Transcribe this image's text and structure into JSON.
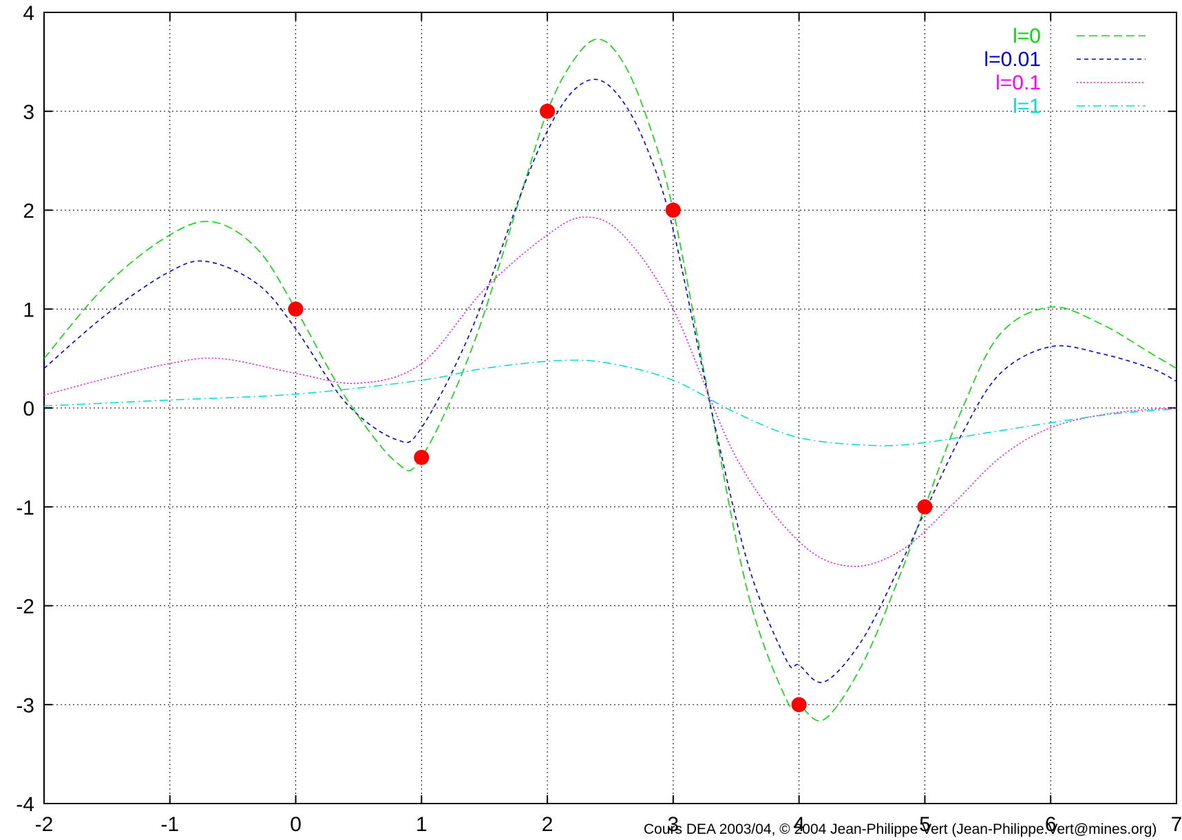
{
  "chart_data": {
    "type": "line",
    "title": "",
    "xlabel": "",
    "ylabel": "",
    "xlim": [
      -2,
      7
    ],
    "ylim": [
      -4,
      4
    ],
    "x_ticks": [
      -2,
      -1,
      0,
      1,
      2,
      3,
      4,
      5,
      6,
      7
    ],
    "y_ticks": [
      -4,
      -3,
      -2,
      -1,
      0,
      1,
      2,
      3,
      4
    ],
    "grid": true,
    "legend_position": "top-right",
    "training_points": {
      "color": "#ff0000",
      "x": [
        0,
        1,
        2,
        3,
        4,
        5
      ],
      "y": [
        1,
        -0.5,
        3,
        2,
        -3,
        -1
      ]
    },
    "series": [
      {
        "name": "l=0",
        "color": "#00dd00",
        "dash": "long-dash",
        "x": [
          -2,
          -1.5,
          -1,
          -0.65,
          -0.3,
          0,
          0.4,
          0.8,
          1,
          1.4,
          1.8,
          2,
          2.2,
          2.4,
          2.6,
          2.8,
          3,
          3.3,
          3.6,
          3.9,
          4,
          4.2,
          4.5,
          4.8,
          5,
          5.3,
          5.6,
          6,
          6.4,
          6.8,
          7
        ],
        "y": [
          0.5,
          1.25,
          1.75,
          1.88,
          1.6,
          1.0,
          0.1,
          -0.55,
          -0.5,
          0.6,
          2.2,
          3.0,
          3.5,
          3.73,
          3.5,
          2.9,
          2.0,
          0.0,
          -1.9,
          -2.95,
          -3.0,
          -3.15,
          -2.6,
          -1.7,
          -1.0,
          0.0,
          0.75,
          1.02,
          0.85,
          0.55,
          0.4
        ]
      },
      {
        "name": "l=0.01",
        "color": "#0000dd",
        "dash": "short-dash",
        "x": [
          -2,
          -1.5,
          -1,
          -0.7,
          -0.3,
          0,
          0.4,
          0.8,
          1,
          1.4,
          1.8,
          2,
          2.2,
          2.4,
          2.6,
          2.8,
          3,
          3.3,
          3.6,
          3.9,
          4,
          4.2,
          4.5,
          4.8,
          5,
          5.3,
          5.6,
          6,
          6.4,
          6.8,
          7
        ],
        "y": [
          0.4,
          0.95,
          1.38,
          1.48,
          1.25,
          0.8,
          0.05,
          -0.32,
          -0.2,
          0.8,
          2.2,
          2.8,
          3.2,
          3.32,
          3.1,
          2.6,
          1.8,
          0.0,
          -1.6,
          -2.55,
          -2.6,
          -2.77,
          -2.35,
          -1.6,
          -1.05,
          -0.25,
          0.35,
          0.62,
          0.55,
          0.4,
          0.27
        ]
      },
      {
        "name": "l=0.1",
        "color": "#ff00ff",
        "dash": "dotted",
        "x": [
          -2,
          -1.5,
          -1,
          -0.6,
          0,
          0.5,
          1,
          1.5,
          2,
          2.3,
          2.6,
          3,
          3.5,
          4,
          4.4,
          4.8,
          5.2,
          5.6,
          6,
          6.5,
          7
        ],
        "y": [
          0.13,
          0.3,
          0.45,
          0.5,
          0.35,
          0.25,
          0.45,
          1.2,
          1.75,
          1.93,
          1.75,
          1.0,
          -0.5,
          -1.35,
          -1.6,
          -1.45,
          -1.0,
          -0.5,
          -0.2,
          -0.05,
          0.0
        ]
      },
      {
        "name": "l=1",
        "color": "#00dddd",
        "dash": "dash-dot",
        "x": [
          -2,
          -1,
          0,
          1,
          1.5,
          2.1,
          2.5,
          3,
          3.5,
          4,
          4.6,
          5,
          5.5,
          6,
          6.5,
          7
        ],
        "y": [
          0.02,
          0.08,
          0.14,
          0.28,
          0.4,
          0.48,
          0.45,
          0.28,
          -0.05,
          -0.3,
          -0.38,
          -0.35,
          -0.25,
          -0.15,
          -0.06,
          -0.01
        ]
      }
    ],
    "footer": "Cours DEA 2003/04, © 2004 Jean-Philippe Vert (Jean-Philippe.Vert@mines.org)"
  }
}
